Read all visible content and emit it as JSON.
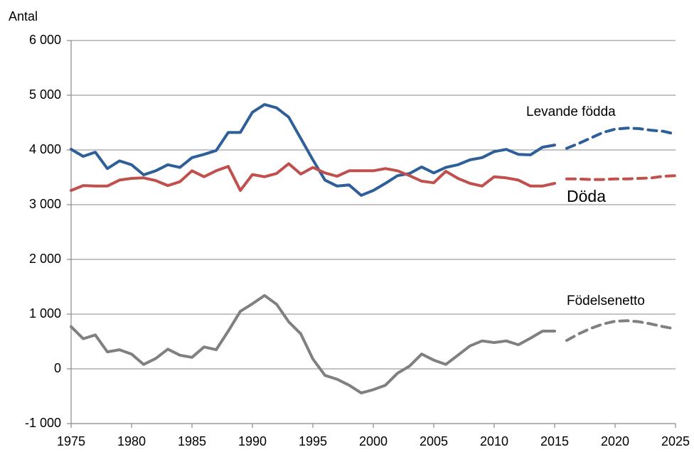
{
  "chart_data": {
    "type": "line",
    "y_label": "Antal",
    "x": [
      1975,
      1976,
      1977,
      1978,
      1979,
      1980,
      1981,
      1982,
      1983,
      1984,
      1985,
      1986,
      1987,
      1988,
      1989,
      1990,
      1991,
      1992,
      1993,
      1994,
      1995,
      1996,
      1997,
      1998,
      1999,
      2000,
      2001,
      2002,
      2003,
      2004,
      2005,
      2006,
      2007,
      2008,
      2009,
      2010,
      2011,
      2012,
      2013,
      2014,
      2015,
      2016,
      2017,
      2018,
      2019,
      2020,
      2021,
      2022,
      2023,
      2024,
      2025
    ],
    "dashed_from": 2016,
    "series": [
      {
        "name": "Levande födda",
        "color": "#2f5f98",
        "values": [
          4013,
          3883,
          3960,
          3660,
          3800,
          3730,
          3545,
          3620,
          3730,
          3680,
          3860,
          3920,
          3990,
          4320,
          4320,
          4690,
          4830,
          4770,
          4600,
          4210,
          3820,
          3450,
          3340,
          3360,
          3170,
          3260,
          3390,
          3530,
          3570,
          3690,
          3580,
          3680,
          3730,
          3820,
          3860,
          3970,
          4010,
          3920,
          3910,
          4050,
          4090,
          4030,
          4120,
          4220,
          4320,
          4380,
          4400,
          4390,
          4360,
          4340,
          4290
        ]
      },
      {
        "name": "Döda",
        "color": "#c0504d",
        "values": [
          3260,
          3350,
          3340,
          3340,
          3450,
          3480,
          3490,
          3440,
          3350,
          3420,
          3620,
          3510,
          3620,
          3700,
          3260,
          3550,
          3510,
          3570,
          3750,
          3560,
          3680,
          3580,
          3520,
          3620,
          3620,
          3620,
          3660,
          3620,
          3530,
          3430,
          3400,
          3610,
          3480,
          3390,
          3340,
          3510,
          3490,
          3450,
          3340,
          3340,
          3390,
          3470,
          3470,
          3460,
          3460,
          3470,
          3470,
          3480,
          3490,
          3520,
          3530
        ]
      },
      {
        "name": "Födelsenetto",
        "color": "#808080",
        "values": [
          770,
          550,
          620,
          310,
          350,
          270,
          80,
          190,
          360,
          250,
          210,
          400,
          350,
          690,
          1050,
          1190,
          1340,
          1180,
          860,
          640,
          180,
          -120,
          -190,
          -300,
          -440,
          -380,
          -300,
          -80,
          50,
          270,
          160,
          80,
          250,
          420,
          510,
          480,
          510,
          440,
          560,
          690,
          690,
          520,
          640,
          740,
          820,
          870,
          880,
          860,
          820,
          770,
          730
        ]
      }
    ],
    "xlim": [
      1975,
      2025
    ],
    "xticks": [
      1975,
      1980,
      1985,
      1990,
      1995,
      2000,
      2005,
      2010,
      2015,
      2020,
      2025
    ],
    "ylim": [
      -1000,
      6000
    ],
    "yticks": [
      {
        "value": -1000,
        "label": "-1 000"
      },
      0,
      {
        "value": 1000,
        "label": "1 000"
      },
      {
        "value": 2000,
        "label": "2 000"
      },
      {
        "value": 3000,
        "label": "3 000"
      },
      {
        "value": 4000,
        "label": "4 000"
      },
      {
        "value": 5000,
        "label": "5 000"
      },
      {
        "value": 6000,
        "label": "6 000"
      }
    ],
    "grid": true
  }
}
